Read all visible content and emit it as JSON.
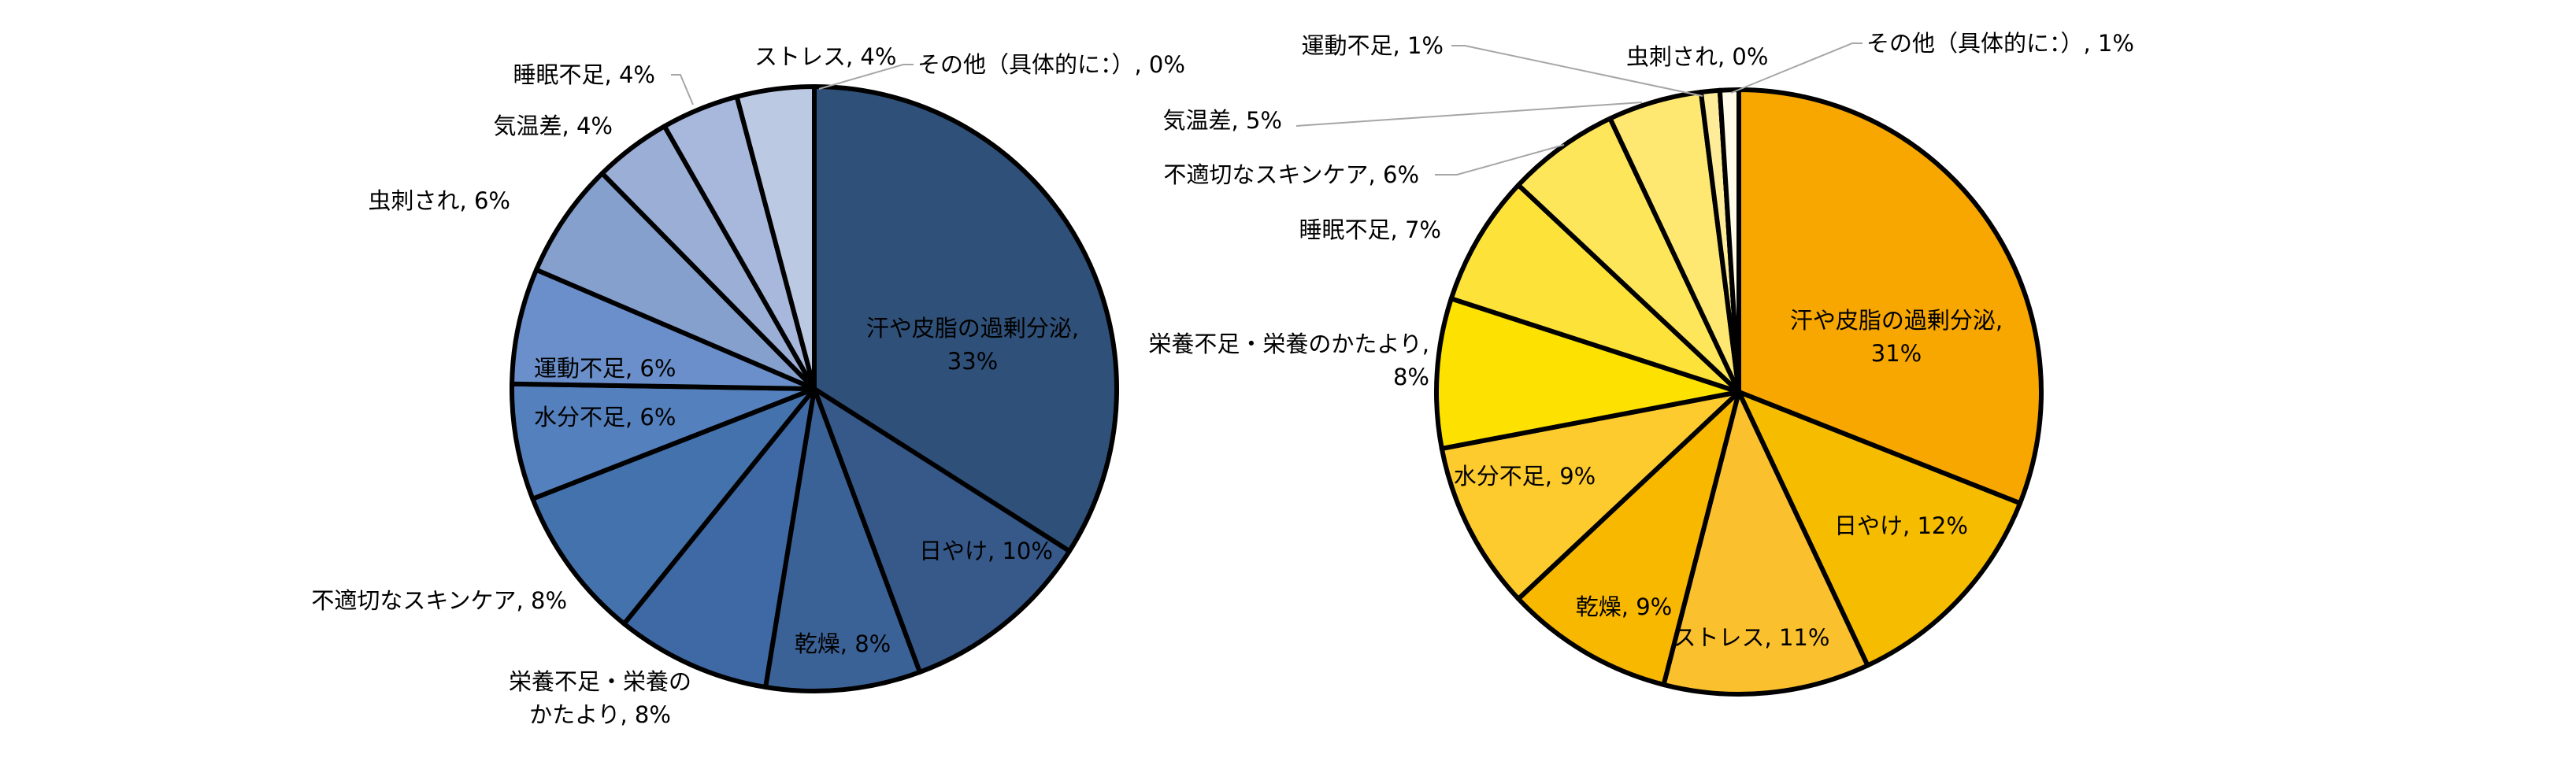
{
  "chart_data": [
    {
      "type": "pie",
      "title": "",
      "legend": "none",
      "start": "12 o'clock, clockwise",
      "categories": [
        "汗や皮脂の過剰分泌",
        "日やけ",
        "乾燥",
        "栄養不足・栄養のかたより",
        "不適切なスキンケア",
        "水分不足",
        "運動不足",
        "虫刺され",
        "気温差",
        "睡眠不足",
        "ストレス",
        "その他（具体的に：）"
      ],
      "values": [
        33,
        10,
        8,
        8,
        8,
        6,
        6,
        6,
        4,
        4,
        4,
        0
      ],
      "labels": [
        [
          "汗や皮脂の過剰分泌,",
          "33%"
        ],
        [
          "日やけ, 10%"
        ],
        [
          "乾燥, 8%"
        ],
        [
          "栄養不足・栄養の",
          "かたより, 8%"
        ],
        [
          "不適切なスキンケア, 8%"
        ],
        [
          "水分不足, 6%"
        ],
        [
          "運動不足, 6%"
        ],
        [
          "虫刺され, 6%"
        ],
        [
          "気温差, 4%"
        ],
        [
          "睡眠不足, 4%"
        ],
        [
          "ストレス, 4%"
        ],
        [
          "その他（具体的に：）, 0%"
        ]
      ],
      "colors": [
        "#2F5078",
        "#36598A",
        "#3B6297",
        "#3F69A4",
        "#4472AC",
        "#5580BE",
        "#6A8FCA",
        "#86A0CE",
        "#9AAED6",
        "#A7B8DC",
        "#BCC9E3",
        "#D6DEEE"
      ]
    },
    {
      "type": "pie",
      "title": "",
      "legend": "none",
      "start": "12 o'clock, clockwise",
      "categories": [
        "汗や皮脂の過剰分泌",
        "日やけ",
        "ストレス",
        "乾燥",
        "水分不足",
        "栄養不足・栄養のかたより",
        "睡眠不足",
        "不適切なスキンケア",
        "気温差",
        "運動不足",
        "虫刺され",
        "その他（具体的に：）"
      ],
      "values": [
        31,
        12,
        11,
        9,
        9,
        8,
        7,
        6,
        5,
        1,
        0,
        1
      ],
      "labels": [
        [
          "汗や皮脂の過剰分泌,",
          "31%"
        ],
        [
          "日やけ, 12%"
        ],
        [
          "ストレス, 11%"
        ],
        [
          "乾燥, 9%"
        ],
        [
          "水分不足, 9%"
        ],
        [
          "栄養不足・栄養のかたより,",
          "8%"
        ],
        [
          "睡眠不足, 7%"
        ],
        [
          "不適切なスキンケア, 6%"
        ],
        [
          "気温差, 5%"
        ],
        [
          "運動不足, 1%"
        ],
        [
          "虫刺され, 0%"
        ],
        [
          "その他（具体的に：）, 1%"
        ]
      ],
      "colors": [
        "#F7A700",
        "#F6BC00",
        "#FBC02D",
        "#F9B800",
        "#FDCB2E",
        "#FDE100",
        "#FDE339",
        "#FDE65A",
        "#FEE872",
        "#FEEC98",
        "#FFF4C6",
        "#FFFBE6"
      ]
    }
  ]
}
